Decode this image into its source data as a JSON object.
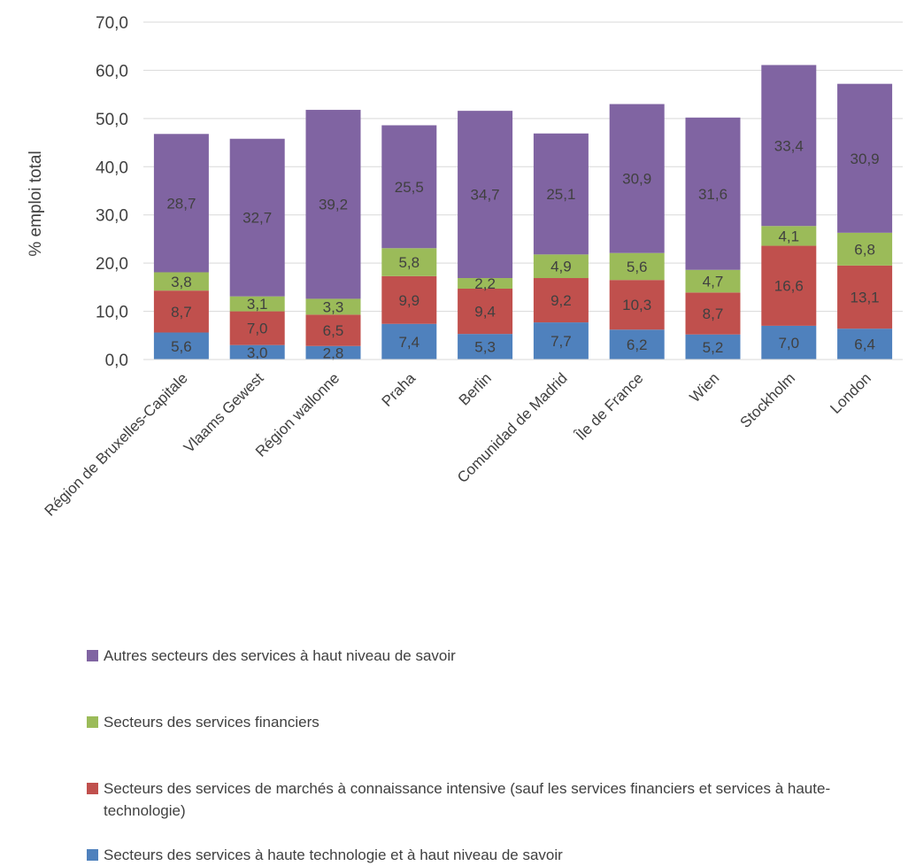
{
  "chart_data": {
    "type": "bar",
    "stacked": true,
    "title": "",
    "xlabel": "",
    "ylabel": "% emploi total",
    "ylim": [
      0,
      70
    ],
    "yticks": [
      "0,0",
      "10,0",
      "20,0",
      "30,0",
      "40,0",
      "50,0",
      "60,0",
      "70,0"
    ],
    "grid": true,
    "legend_position": "bottom",
    "categories": [
      "Région de Bruxelles-Capitale",
      "Vlaams Gewest",
      "Région wallonne",
      "Praha",
      "Berlin",
      "Comunidad de Madrid",
      "Île de France",
      "Wien",
      "Stockholm",
      "London"
    ],
    "series": [
      {
        "name": "Secteurs des services à haute technologie et à haut niveau de savoir",
        "color": "#4f81bd",
        "values": [
          5.6,
          3.0,
          2.8,
          7.4,
          5.3,
          7.7,
          6.2,
          5.2,
          7.0,
          6.4
        ],
        "labels": [
          "5,6",
          "3,0",
          "2,8",
          "7,4",
          "5,3",
          "7,7",
          "6,2",
          "5,2",
          "7,0",
          "6,4"
        ]
      },
      {
        "name": "Secteurs des services de marchés à connaissance intensive (sauf les services financiers et services à haute-technologie)",
        "color": "#c0504d",
        "values": [
          8.7,
          7.0,
          6.5,
          9.9,
          9.4,
          9.2,
          10.3,
          8.7,
          16.6,
          13.1
        ],
        "labels": [
          "8,7",
          "7,0",
          "6,5",
          "9,9",
          "9,4",
          "9,2",
          "10,3",
          "8,7",
          "16,6",
          "13,1"
        ]
      },
      {
        "name": "Secteurs des services financiers",
        "color": "#9bbb59",
        "values": [
          3.8,
          3.1,
          3.3,
          5.8,
          2.2,
          4.9,
          5.6,
          4.7,
          4.1,
          6.8
        ],
        "labels": [
          "3,8",
          "3,1",
          "3,3",
          "5,8",
          "2,2",
          "4,9",
          "5,6",
          "4,7",
          "4,1",
          "6,8"
        ]
      },
      {
        "name": "Autres secteurs des services à haut niveau de savoir",
        "color": "#8064a2",
        "values": [
          28.7,
          32.7,
          39.2,
          25.5,
          34.7,
          25.1,
          30.9,
          31.6,
          33.4,
          30.9
        ],
        "labels": [
          "28,7",
          "32,7",
          "39,2",
          "25,5",
          "34,7",
          "25,1",
          "30,9",
          "31,6",
          "33,4",
          "30,9"
        ]
      }
    ],
    "legend": [
      {
        "label": "Autres secteurs des services à haut niveau de savoir",
        "color": "#8064a2"
      },
      {
        "label": "Secteurs des services financiers",
        "color": "#9bbb59"
      },
      {
        "label": "Secteurs des services de marchés à connaissance intensive (sauf les services financiers et services à haute-technologie)",
        "color": "#c0504d"
      },
      {
        "label": "Secteurs des services à haute technologie et à haut niveau de savoir",
        "color": "#4f81bd"
      }
    ],
    "gridline_color": "#d9d9d9"
  }
}
